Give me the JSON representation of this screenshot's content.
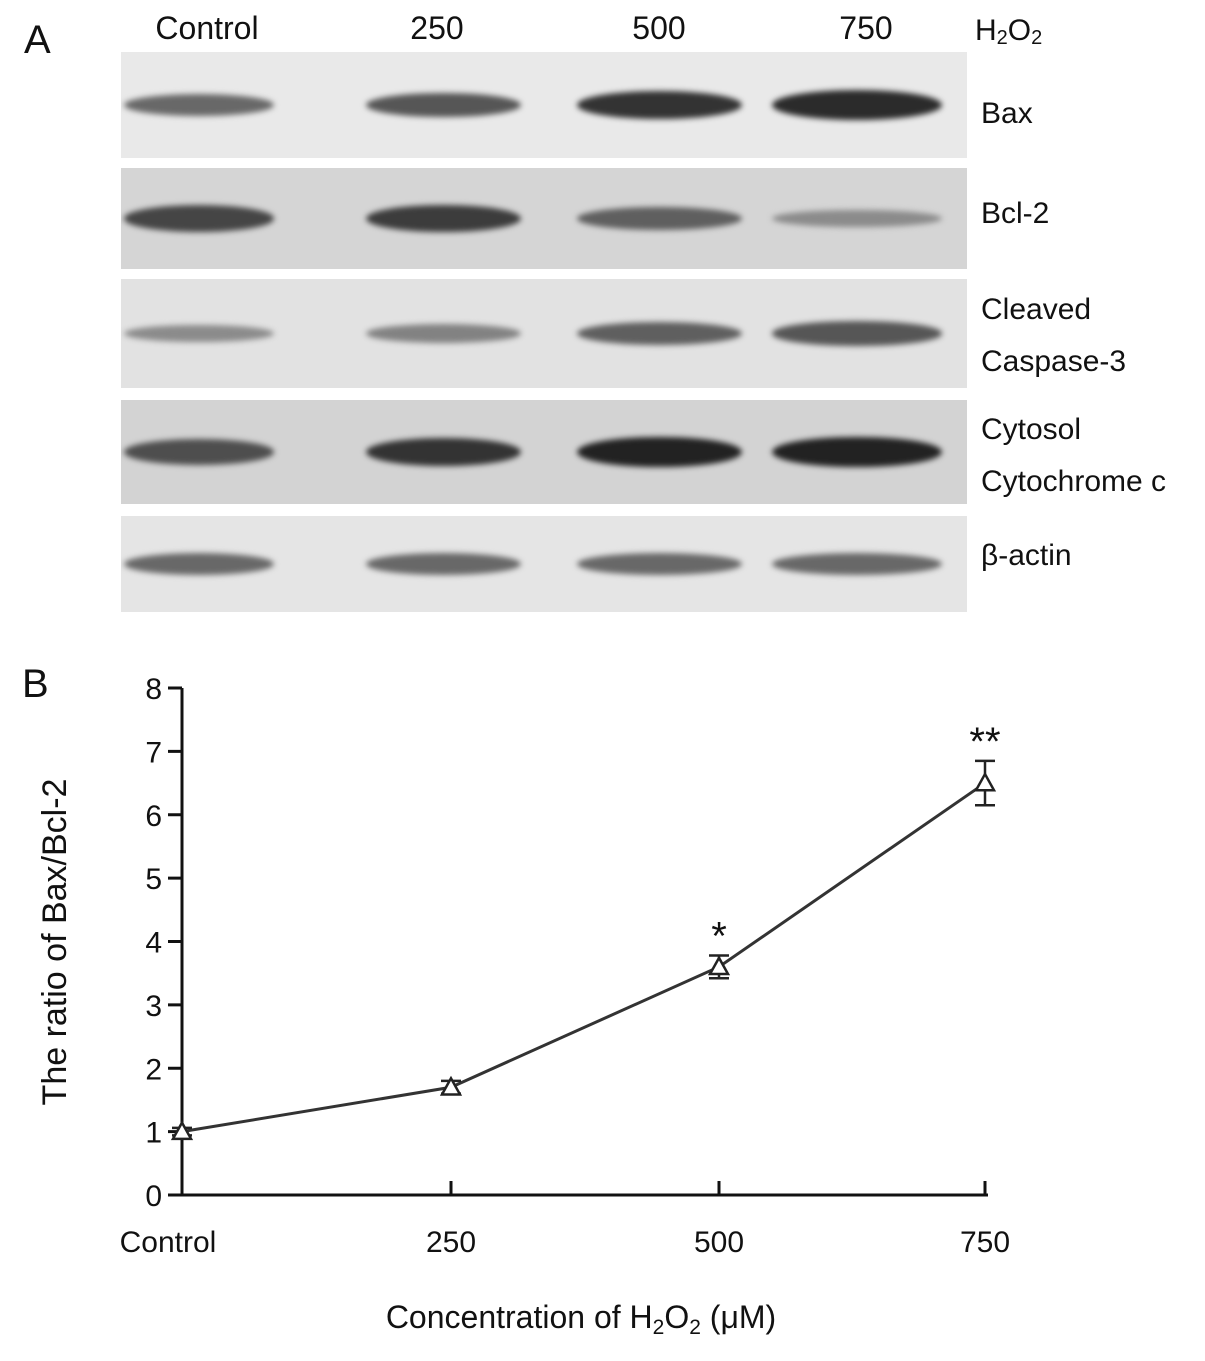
{
  "panel_a": {
    "letter": "A",
    "lanes": [
      "Control",
      "250",
      "500",
      "750"
    ],
    "treatment_label": "H",
    "treatment_sub1": "2",
    "treatment_mid": "O",
    "treatment_sub2": "2",
    "blots": [
      {
        "name": "Bax",
        "label_lines": [
          "Bax"
        ],
        "background": "#e9e9e9",
        "band_intensities": [
          0.55,
          0.65,
          0.85,
          0.9
        ]
      },
      {
        "name": "Bcl-2",
        "label_lines": [
          "Bcl-2"
        ],
        "background": "#d5d5d5",
        "band_intensities": [
          0.75,
          0.8,
          0.6,
          0.35
        ]
      },
      {
        "name": "Cleaved Caspase-3",
        "label_lines": [
          "Cleaved",
          "Caspase-3"
        ],
        "background": "#e2e2e2",
        "band_intensities": [
          0.35,
          0.4,
          0.6,
          0.65
        ]
      },
      {
        "name": "Cytosol Cytochrome c",
        "label_lines": [
          "Cytosol",
          "Cytochrome c"
        ],
        "background": "#d3d3d3",
        "band_intensities": [
          0.7,
          0.85,
          0.95,
          0.95
        ]
      },
      {
        "name": "beta-actin",
        "label_lines": [
          "β-actin"
        ],
        "background": "#e5e5e5",
        "band_intensities": [
          0.55,
          0.55,
          0.55,
          0.55
        ]
      }
    ]
  },
  "panel_b": {
    "letter": "B"
  },
  "chart_data": {
    "type": "line",
    "title": "",
    "xlabel_parts": [
      "Concentration of H",
      "2",
      "O",
      "2",
      " (μM)"
    ],
    "ylabel": "The ratio of Bax/Bcl-2",
    "categories": [
      "Control",
      "250",
      "500",
      "750"
    ],
    "x": [
      0,
      250,
      500,
      750
    ],
    "y": [
      1.0,
      1.7,
      3.6,
      6.5
    ],
    "error": [
      0.06,
      0.1,
      0.18,
      0.35
    ],
    "annotations": [
      "",
      "",
      "*",
      "**"
    ],
    "ylim": [
      0,
      8
    ],
    "yticks": [
      0,
      1,
      2,
      3,
      4,
      5,
      6,
      7,
      8
    ],
    "marker": "triangle-open",
    "line_color": "#333333",
    "grid": false
  }
}
